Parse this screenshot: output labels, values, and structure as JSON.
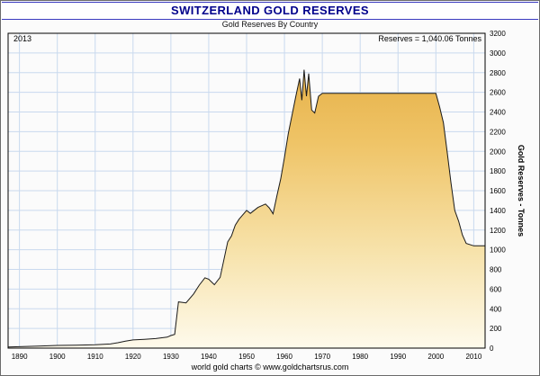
{
  "header": {
    "title": "SWITZERLAND GOLD RESERVES",
    "subtitle": "Gold Reserves By Country"
  },
  "plot": {
    "year_label": "2013",
    "reserves_label": "Reserves = 1,040.06 Tonnes"
  },
  "footer": {
    "caption": "world gold charts © www.goldchartsrus.com"
  },
  "colors": {
    "title": "#00008B",
    "gridline": "#c9d9ee",
    "area_top": "#e2a93c",
    "area_mid": "#efc467",
    "area_low": "#f7e3ac",
    "area_bottom": "#fefaec",
    "outline": "#1a1a1a",
    "plot_border": "#000000"
  },
  "chart_data": {
    "type": "area",
    "title": "SWITZERLAND GOLD RESERVES",
    "subtitle": "Gold Reserves By Country",
    "xlabel": "",
    "ylabel": "Gold Reserves - Tonnes",
    "xlim": [
      1887,
      2013
    ],
    "ylim": [
      0,
      3200
    ],
    "grid": true,
    "legend": "none",
    "x_ticks": [
      1890,
      1900,
      1910,
      1920,
      1930,
      1940,
      1950,
      1960,
      1970,
      1980,
      1990,
      2000,
      2010
    ],
    "y_ticks": [
      0,
      200,
      400,
      600,
      800,
      1000,
      1200,
      1400,
      1600,
      1800,
      2000,
      2200,
      2400,
      2600,
      2800,
      3000,
      3200
    ],
    "annotations": [
      "2013",
      "Reserves = 1,040.06 Tonnes"
    ],
    "series": [
      {
        "name": "Switzerland Gold Reserves (Tonnes)",
        "x": [
          1887,
          1890,
          1895,
          1900,
          1905,
          1910,
          1914,
          1916,
          1918,
          1920,
          1923,
          1926,
          1929,
          1930,
          1931,
          1932,
          1934,
          1936,
          1937.5,
          1939,
          1940,
          1941.5,
          1943,
          1945,
          1946,
          1947,
          1948,
          1950,
          1951,
          1953,
          1955,
          1956,
          1957,
          1958,
          1959,
          1960,
          1961,
          1962,
          1963,
          1964,
          1964.6,
          1965.2,
          1965.8,
          1966.4,
          1967.2,
          1968,
          1969,
          1970,
          1975,
          1980,
          1985,
          1990,
          1995,
          2000,
          2001,
          2002,
          2003,
          2004,
          2005,
          2006,
          2007,
          2008,
          2010,
          2013
        ],
        "y": [
          12,
          15,
          20,
          27,
          30,
          34,
          42,
          55,
          70,
          83,
          90,
          97,
          112,
          128,
          140,
          470,
          460,
          550,
          640,
          715,
          700,
          645,
          720,
          1080,
          1140,
          1250,
          1310,
          1400,
          1370,
          1430,
          1465,
          1425,
          1365,
          1550,
          1720,
          1940,
          2180,
          2370,
          2560,
          2740,
          2520,
          2830,
          2560,
          2790,
          2420,
          2390,
          2560,
          2590,
          2590,
          2590,
          2590,
          2590,
          2590,
          2590,
          2450,
          2290,
          1990,
          1680,
          1400,
          1290,
          1150,
          1064,
          1040,
          1040
        ]
      }
    ]
  }
}
